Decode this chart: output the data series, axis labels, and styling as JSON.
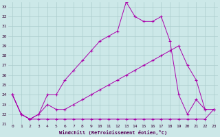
{
  "xlabel": "Windchill (Refroidissement éolien,°C)",
  "background_color": "#cce8e8",
  "grid_color": "#aacccc",
  "line_color": "#aa00aa",
  "xlim": [
    0,
    23
  ],
  "ylim": [
    21,
    33
  ],
  "xticks": [
    0,
    1,
    2,
    3,
    4,
    5,
    6,
    7,
    8,
    9,
    10,
    11,
    12,
    13,
    14,
    15,
    16,
    17,
    18,
    19,
    20,
    21,
    22,
    23
  ],
  "yticks": [
    21,
    22,
    23,
    24,
    25,
    26,
    27,
    28,
    29,
    30,
    31,
    32,
    33
  ],
  "line1_x": [
    0,
    1,
    2,
    3,
    4,
    5,
    6,
    7,
    8,
    9,
    10,
    11,
    12,
    13,
    14,
    15,
    16,
    17,
    18,
    19,
    20,
    21,
    22,
    23
  ],
  "line1_y": [
    24,
    22,
    21.5,
    21.5,
    21.5,
    21.5,
    21.5,
    21.5,
    21.5,
    21.5,
    21.5,
    21.5,
    21.5,
    21.5,
    21.5,
    21.5,
    21.5,
    21.5,
    21.5,
    21.5,
    21.5,
    21.5,
    21.5,
    22.5
  ],
  "line2_x": [
    0,
    1,
    2,
    3,
    4,
    5,
    6,
    7,
    8,
    9,
    10,
    11,
    12,
    13,
    14,
    15,
    16,
    17,
    18,
    19,
    20,
    21,
    22,
    23
  ],
  "line2_y": [
    24,
    22,
    21.5,
    22,
    23,
    22.5,
    22.5,
    23,
    23.5,
    24,
    24.5,
    25,
    25.5,
    26,
    26.5,
    27,
    27.5,
    28,
    28.5,
    29,
    27,
    25.5,
    22.5,
    22.5
  ],
  "line3_x": [
    0,
    1,
    2,
    3,
    4,
    5,
    6,
    7,
    8,
    9,
    10,
    11,
    12,
    13,
    14,
    15,
    16,
    17,
    18,
    19,
    20,
    21,
    22,
    23
  ],
  "line3_y": [
    24,
    22,
    21.5,
    22,
    24,
    24,
    25.5,
    26.5,
    27.5,
    28.5,
    29.5,
    30,
    30.5,
    33.5,
    32,
    31.5,
    31.5,
    32,
    29.5,
    24,
    22,
    23.5,
    22.5,
    22.5
  ]
}
